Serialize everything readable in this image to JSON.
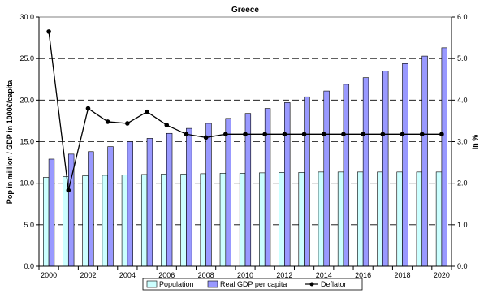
{
  "chart_data": {
    "type": "bar",
    "title": "Greece",
    "ylabel": "Pop in million / GDP in 1000€/capita",
    "y2label": "in %",
    "categories": [
      "2000",
      "2001",
      "2002",
      "2003",
      "2004",
      "2005",
      "2006",
      "2007",
      "2008",
      "2009",
      "2010",
      "2011",
      "2012",
      "2013",
      "2014",
      "2015",
      "2016",
      "2017",
      "2018",
      "2019",
      "2020"
    ],
    "x_tick_labels": [
      "2000",
      "2002",
      "2004",
      "2006",
      "2008",
      "2010",
      "2012",
      "2014",
      "2016",
      "2018",
      "2020"
    ],
    "y_tick_labels": [
      "0.0",
      "5.0",
      "10.0",
      "15.0",
      "20.0",
      "25.0",
      "30.0"
    ],
    "y2_tick_labels": [
      "0.0",
      "1.0",
      "2.0",
      "3.0",
      "4.0",
      "5.0",
      "6.0"
    ],
    "ylim": [
      0,
      30
    ],
    "y2lim": [
      0,
      6
    ],
    "grid": "horizontal dashed",
    "legend_position": "bottom",
    "series": [
      {
        "name": "Population",
        "kind": "bar",
        "axis": "left",
        "color": "#ccffff",
        "values": [
          10.7,
          10.8,
          10.9,
          10.95,
          11.0,
          11.05,
          11.1,
          11.1,
          11.15,
          11.2,
          11.2,
          11.25,
          11.3,
          11.3,
          11.35,
          11.35,
          11.35,
          11.35,
          11.35,
          11.35,
          11.35
        ]
      },
      {
        "name": "Real GDP per capita",
        "kind": "bar",
        "axis": "left",
        "color": "#9999ff",
        "values": [
          12.9,
          13.5,
          13.8,
          14.4,
          15.0,
          15.4,
          16.0,
          16.6,
          17.2,
          17.8,
          18.4,
          19.0,
          19.7,
          20.4,
          21.1,
          21.9,
          22.7,
          23.5,
          24.4,
          25.3,
          26.3
        ]
      },
      {
        "name": "Deflator",
        "kind": "line",
        "axis": "right",
        "color": "#000000",
        "values": [
          5.65,
          1.83,
          3.8,
          3.48,
          3.44,
          3.72,
          3.4,
          3.18,
          3.1,
          3.18,
          3.18,
          3.18,
          3.18,
          3.18,
          3.18,
          3.18,
          3.18,
          3.18,
          3.18,
          3.18,
          3.18
        ]
      }
    ]
  }
}
